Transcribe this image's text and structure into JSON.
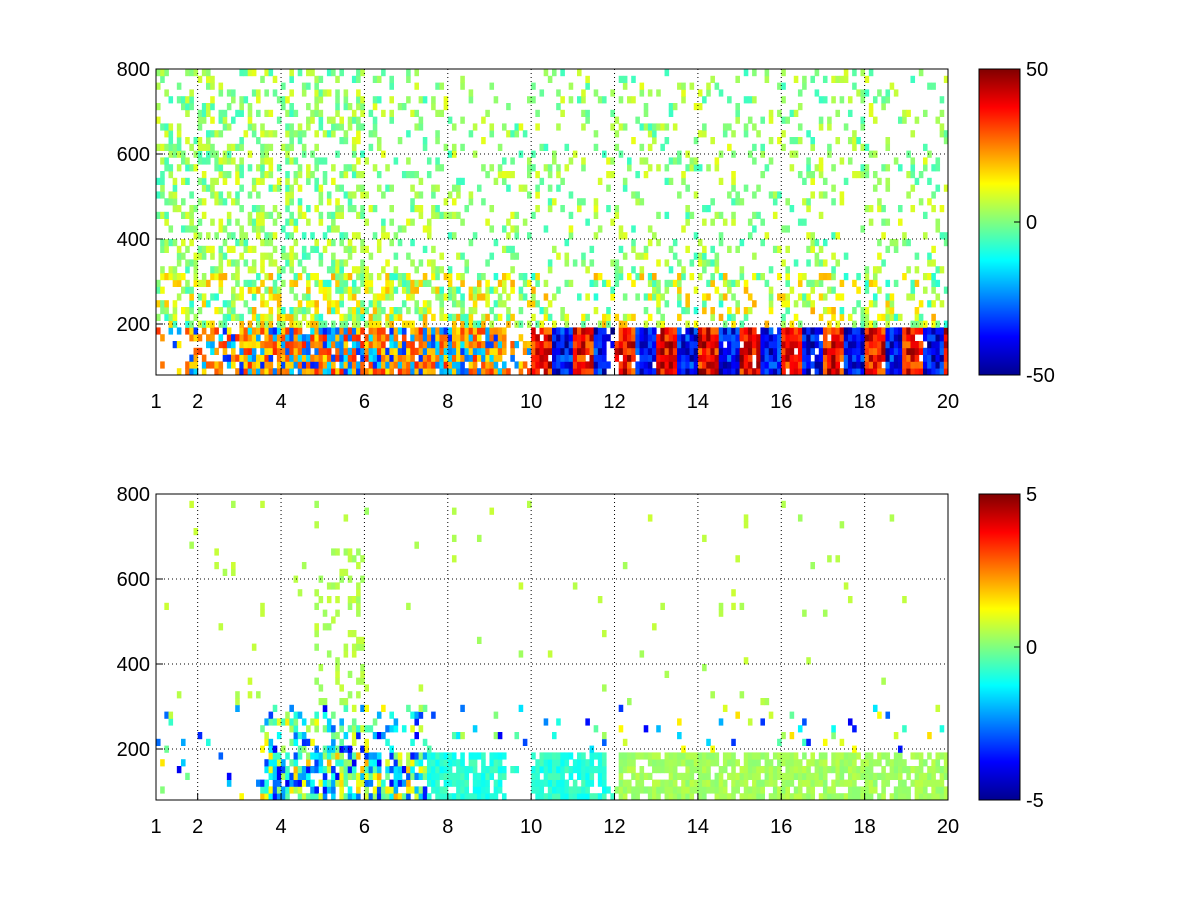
{
  "figure": {
    "background": "#ffffff"
  },
  "chart_data": [
    {
      "type": "heatmap",
      "title": "",
      "xlabel": "",
      "ylabel": "",
      "xlim": [
        1,
        20
      ],
      "ylim": [
        80,
        800
      ],
      "x_ticks": [
        1,
        2,
        4,
        6,
        8,
        10,
        12,
        14,
        16,
        18,
        20
      ],
      "x_tick_labels": [
        "1",
        "2",
        "4",
        "6",
        "8",
        "10",
        "12",
        "14",
        "16",
        "18",
        "20"
      ],
      "y_ticks": [
        200,
        400,
        600,
        800
      ],
      "y_tick_labels": [
        "200",
        "400",
        "600",
        "800"
      ],
      "grid": true,
      "grid_style": "dotted",
      "colormap": "jet",
      "color_limits": [
        -50,
        50
      ],
      "colorbar_ticks": [
        -50,
        0,
        50
      ],
      "colorbar_tick_labels": [
        "-50",
        "0",
        "50"
      ],
      "missing_values_color": "#ffffff",
      "description_bands": [
        {
          "x_range": [
            3.5,
            9.5
          ],
          "y_range": [
            80,
            200
          ],
          "typical_value": 35,
          "pattern": "alternating strong positive and negative"
        },
        {
          "x_range": [
            10,
            20
          ],
          "y_range": [
            80,
            190
          ],
          "typical_value": -30,
          "pattern": "alternating strong positive and negative"
        },
        {
          "x_range": [
            1,
            20
          ],
          "y_range": [
            200,
            800
          ],
          "typical_value": 5,
          "pattern": "sparse weak values"
        }
      ]
    },
    {
      "type": "heatmap",
      "title": "",
      "xlabel": "",
      "ylabel": "",
      "xlim": [
        1,
        20
      ],
      "ylim": [
        80,
        800
      ],
      "x_ticks": [
        1,
        2,
        4,
        6,
        8,
        10,
        12,
        14,
        16,
        18,
        20
      ],
      "x_tick_labels": [
        "1",
        "2",
        "4",
        "6",
        "8",
        "10",
        "12",
        "14",
        "16",
        "18",
        "20"
      ],
      "y_ticks": [
        200,
        400,
        600,
        800
      ],
      "y_tick_labels": [
        "200",
        "400",
        "600",
        "800"
      ],
      "grid": true,
      "grid_style": "dotted",
      "colormap": "jet",
      "color_limits": [
        -5,
        5
      ],
      "colorbar_ticks": [
        -5,
        0,
        5
      ],
      "colorbar_tick_labels": [
        "-5",
        "0",
        "5"
      ],
      "missing_values_color": "#ffffff",
      "description_bands": [
        {
          "x_range": [
            3.5,
            7.5
          ],
          "y_range": [
            80,
            300
          ],
          "typical_value": -1.5,
          "pattern": "mixed, some strong negative"
        },
        {
          "x_range": [
            7.5,
            12
          ],
          "y_range": [
            80,
            190
          ],
          "typical_value": -1,
          "pattern": "cyan dominant"
        },
        {
          "x_range": [
            12,
            20
          ],
          "y_range": [
            80,
            190
          ],
          "typical_value": 0.3,
          "pattern": "light green dominant"
        }
      ]
    }
  ]
}
